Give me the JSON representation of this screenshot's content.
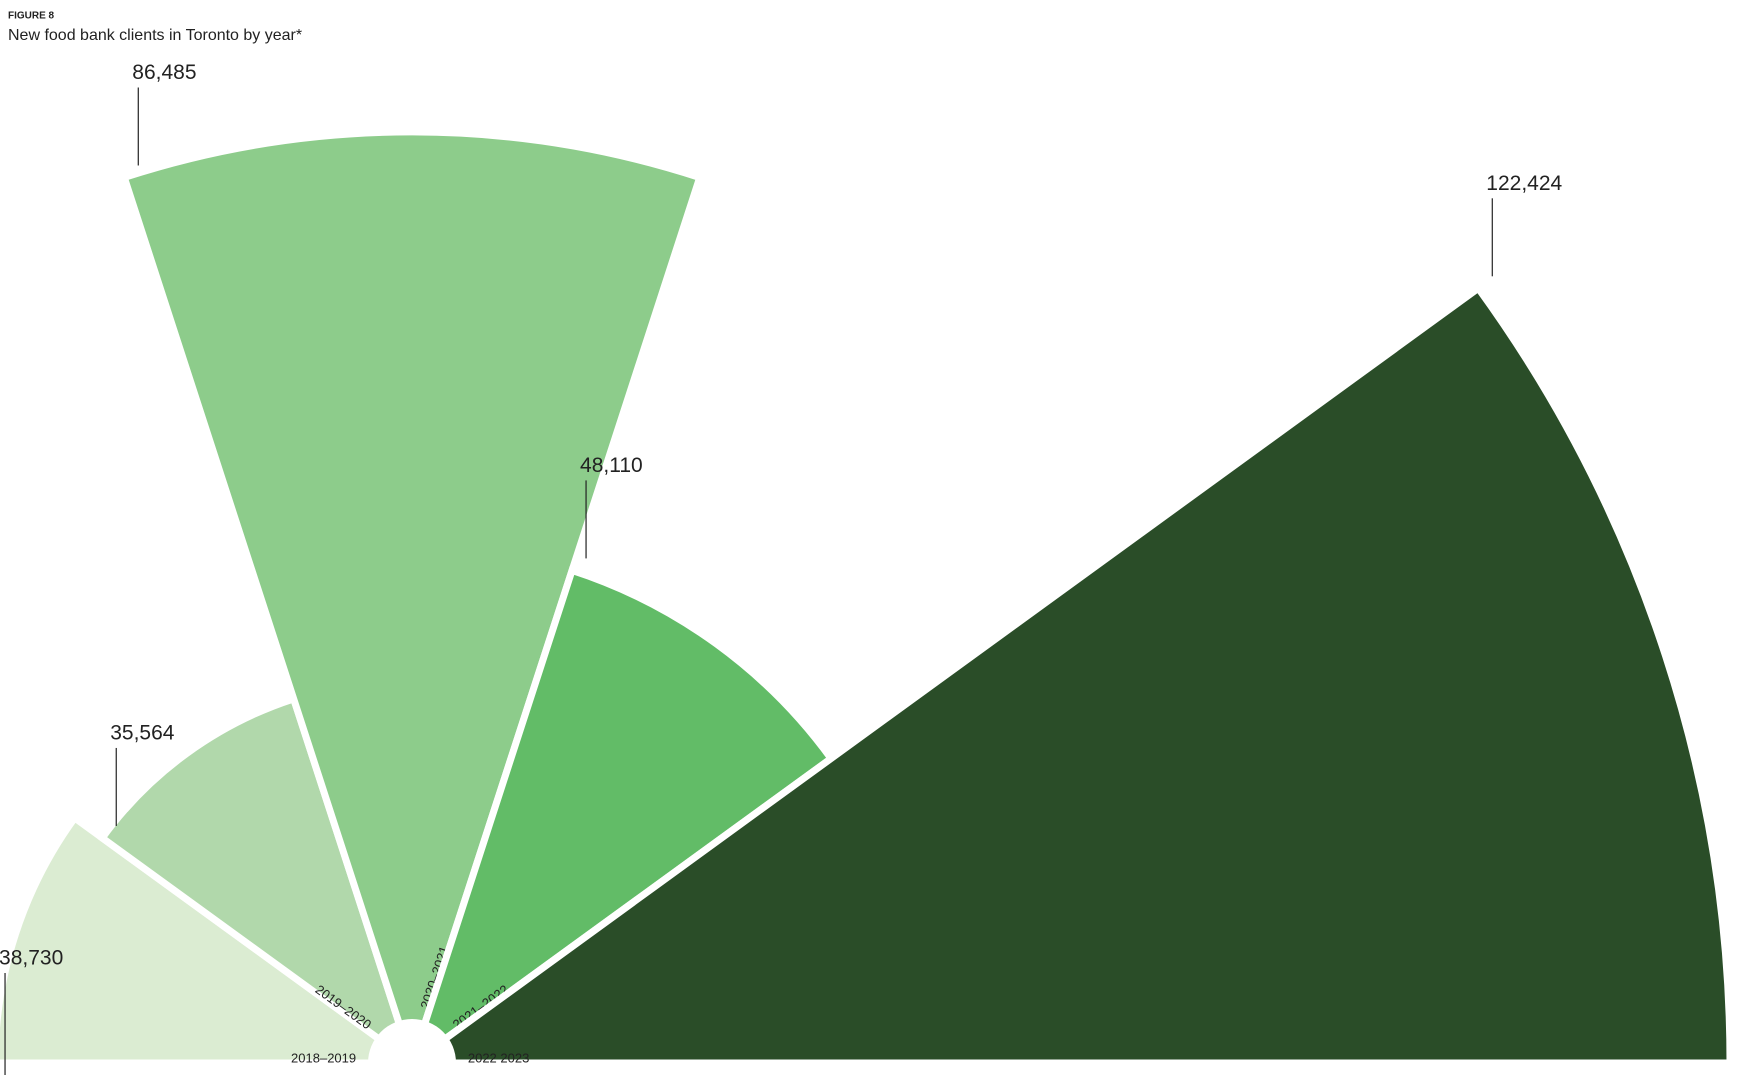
{
  "chart_data": {
    "type": "polar_area",
    "label": "FIGURE 8",
    "title": "New food bank clients in Toronto by year*",
    "categories": [
      "2018–2019",
      "2019–2020",
      "2020–2021",
      "2021–2022",
      "2022  2023"
    ],
    "values": [
      38730,
      35564,
      86485,
      48110,
      122424
    ],
    "value_labels": [
      "38,730",
      "35,564",
      "86,485",
      "48,110",
      "122,424"
    ],
    "colors": [
      "#dbecd2",
      "#b1d8ab",
      "#8dcc8b",
      "#62bc67",
      "#2a4d28"
    ]
  }
}
